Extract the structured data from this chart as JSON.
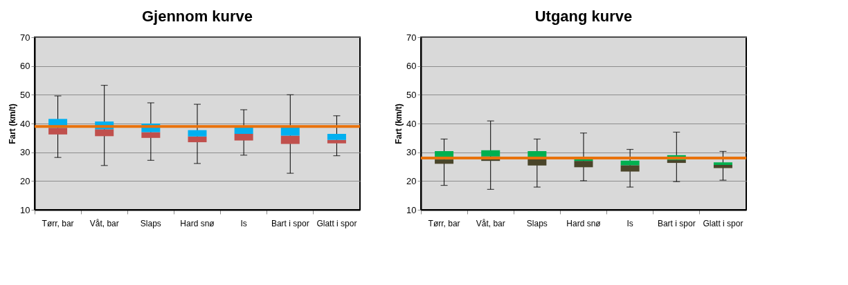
{
  "chart_data": [
    {
      "type": "box",
      "title": "Gjennom kurve",
      "ylabel": "Fart (km/t)",
      "categories": [
        "Tørr, bar",
        "Våt, bar",
        "Slaps",
        "Hard snø",
        "Is",
        "Bart i spor",
        "Glatt i spor"
      ],
      "colors": [
        [
          "#c0504d",
          "#00b0f0"
        ],
        [
          "#c0504d",
          "#00b0f0"
        ],
        [
          "#c0504d",
          "#00b0f0"
        ],
        [
          "#c0504d",
          "#00b0f0"
        ],
        [
          "#c0504d",
          "#00b0f0"
        ],
        [
          "#c0504d",
          "#00b0f0"
        ],
        [
          "#c0504d",
          "#00b0f0"
        ]
      ],
      "boxes": [
        {
          "low": 28.2,
          "q1": 36.2,
          "median": 38.5,
          "q3": 41.6,
          "high": 49.6
        },
        {
          "low": 25.4,
          "q1": 35.6,
          "median": 38.0,
          "q3": 40.7,
          "high": 53.3
        },
        {
          "low": 27.2,
          "q1": 35.0,
          "median": 37.0,
          "q3": 40.0,
          "high": 47.2
        },
        {
          "low": 26.1,
          "q1": 33.5,
          "median": 35.5,
          "q3": 37.7,
          "high": 46.7
        },
        {
          "low": 29.0,
          "q1": 34.1,
          "median": 36.4,
          "q3": 38.8,
          "high": 44.8
        },
        {
          "low": 22.7,
          "q1": 32.9,
          "median": 35.8,
          "q3": 38.7,
          "high": 50.0
        },
        {
          "low": 28.8,
          "q1": 33.1,
          "median": 34.3,
          "q3": 36.4,
          "high": 42.7
        }
      ],
      "ylim": [
        10,
        70
      ],
      "yticks": [
        10,
        20,
        30,
        40,
        50,
        60,
        70
      ],
      "grid": "y",
      "ref_lines": [
        {
          "axis": "y",
          "value": 39,
          "color": "#e8720c"
        }
      ]
    },
    {
      "type": "box",
      "title": "Utgang kurve",
      "ylabel": "Fart (km/t)",
      "categories": [
        "Tørr, bar",
        "Våt, bar",
        "Slaps",
        "Hard snø",
        "Is",
        "Bart i spor",
        "Glatt i spor"
      ],
      "colors": [
        [
          "#4a452a",
          "#00b050"
        ],
        [
          "#4a452a",
          "#00b050"
        ],
        [
          "#4a452a",
          "#00b050"
        ],
        [
          "#4a452a",
          "#00b050"
        ],
        [
          "#4a452a",
          "#00b050"
        ],
        [
          "#4a452a",
          "#00b050"
        ],
        [
          "#4a452a",
          "#00b050"
        ]
      ],
      "boxes": [
        {
          "low": 18.5,
          "q1": 26.0,
          "median": 27.5,
          "q3": 30.4,
          "high": 34.6
        },
        {
          "low": 17.1,
          "q1": 27.0,
          "median": 28.6,
          "q3": 30.7,
          "high": 40.9
        },
        {
          "low": 17.9,
          "q1": 25.4,
          "median": 27.8,
          "q3": 30.4,
          "high": 34.6
        },
        {
          "low": 20.1,
          "q1": 24.8,
          "median": 27.0,
          "q3": 27.9,
          "high": 36.7
        },
        {
          "low": 17.9,
          "q1": 23.3,
          "median": 25.5,
          "q3": 27.1,
          "high": 31.0
        },
        {
          "low": 19.8,
          "q1": 26.3,
          "median": 27.3,
          "q3": 29.0,
          "high": 37.0
        },
        {
          "low": 20.3,
          "q1": 24.5,
          "median": 25.6,
          "q3": 26.5,
          "high": 30.3
        }
      ],
      "ylim": [
        10,
        70
      ],
      "yticks": [
        10,
        20,
        30,
        40,
        50,
        60,
        70
      ],
      "grid": "y",
      "ref_lines": [
        {
          "axis": "y",
          "value": 28,
          "color": "#e8720c"
        }
      ]
    }
  ]
}
